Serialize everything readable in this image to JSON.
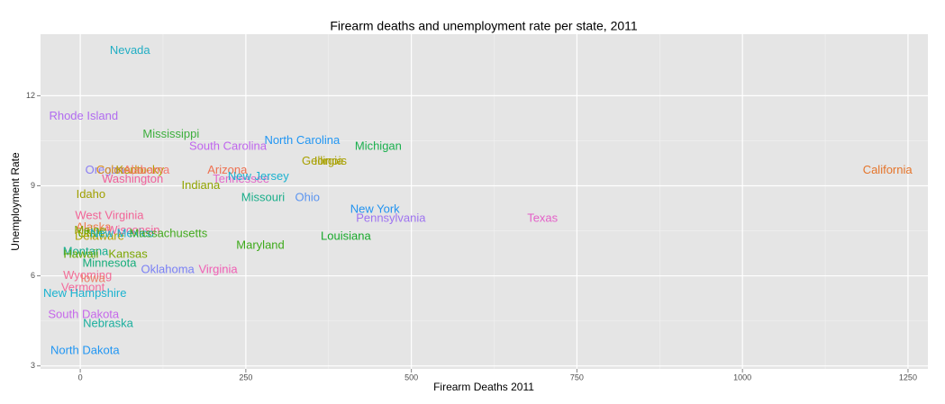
{
  "chart_data": {
    "type": "scatter",
    "title": "Firearm deaths and unemployment rate per state, 2011",
    "x_label": "Firearm Deaths 2011",
    "y_label": "Unemployment Rate",
    "xlim": [
      -60,
      1280
    ],
    "ylim": [
      2.9,
      14.05
    ],
    "xticks": [
      0,
      250,
      500,
      750,
      1000,
      1250
    ],
    "yticks": [
      3,
      6,
      9,
      12
    ],
    "grid": true,
    "labels": [
      "Nevada",
      "Rhode Island",
      "Mississippi",
      "South Carolina",
      "North Carolina",
      "Michigan",
      "Georgia",
      "Illinois",
      "California",
      "Oregon",
      "Colorado",
      "Kentucky",
      "Alabama",
      "Arizona",
      "Washington",
      "Tennessee",
      "New Jersey",
      "Indiana",
      "Idaho",
      "Missouri",
      "Ohio",
      "New York",
      "Pennsylvania",
      "Texas",
      "West Virginia",
      "Alaska",
      "Maine",
      "Wisconsin",
      "Utah",
      "Delaware",
      "New Mexico",
      "Massachusetts",
      "Maryland",
      "Louisiana",
      "Montana",
      "Hawaii",
      "Kansas",
      "Minnesota",
      "Oklahoma",
      "Virginia",
      "Wyoming",
      "Iowa",
      "Vermont",
      "New Hampshire",
      "South Dakota",
      "Nebraska",
      "North Dakota"
    ],
    "x": [
      75,
      5,
      137,
      223,
      335,
      450,
      366,
      378,
      1219,
      37,
      60,
      90,
      100,
      222,
      79,
      243,
      269,
      182,
      16,
      276,
      343,
      445,
      469,
      698,
      44,
      20,
      15,
      80,
      15,
      29,
      63,
      133,
      272,
      401,
      8,
      1,
      72,
      44,
      132,
      208,
      11,
      19,
      4,
      7,
      5,
      42,
      7
    ],
    "y": [
      13.5,
      11.3,
      10.7,
      10.3,
      10.5,
      10.3,
      9.8,
      9.8,
      9.5,
      9.5,
      9.5,
      9.5,
      9.5,
      9.5,
      9.2,
      9.2,
      9.3,
      9.0,
      8.7,
      8.6,
      8.6,
      8.2,
      7.9,
      7.9,
      8.0,
      7.6,
      7.5,
      7.5,
      7.4,
      7.3,
      7.4,
      7.4,
      7.0,
      7.3,
      6.8,
      6.7,
      6.7,
      6.4,
      6.2,
      6.2,
      6.0,
      5.9,
      5.6,
      5.4,
      4.7,
      4.4,
      3.5
    ],
    "colors": [
      "#22AEC4",
      "#B16BF0",
      "#3DAF3D",
      "#C066EE",
      "#2196F3",
      "#1BB04E",
      "#A8A000",
      "#A8A000",
      "#E5742A",
      "#8A7DF3",
      "#D98C17",
      "#B59B00",
      "#F4766E",
      "#EE7050",
      "#F0609A",
      "#E469CA",
      "#1BB2D0",
      "#91A400",
      "#A0A000",
      "#1AAE8A",
      "#5A94F0",
      "#2293EF",
      "#9E73F0",
      "#E460C8",
      "#F26497",
      "#F07A4A",
      "#86A300",
      "#F1639A",
      "#5AA800",
      "#B1A200",
      "#17AFCC",
      "#43AA1E",
      "#3DAA1A",
      "#17A92A",
      "#15AE8F",
      "#5EA600",
      "#7BA600",
      "#15AD7A",
      "#7A80F5",
      "#F05EB4",
      "#F26B95",
      "#EE7B66",
      "#F36A9C",
      "#1BB3D0",
      "#C668EA",
      "#1AAF9E",
      "#2196F3"
    ]
  }
}
